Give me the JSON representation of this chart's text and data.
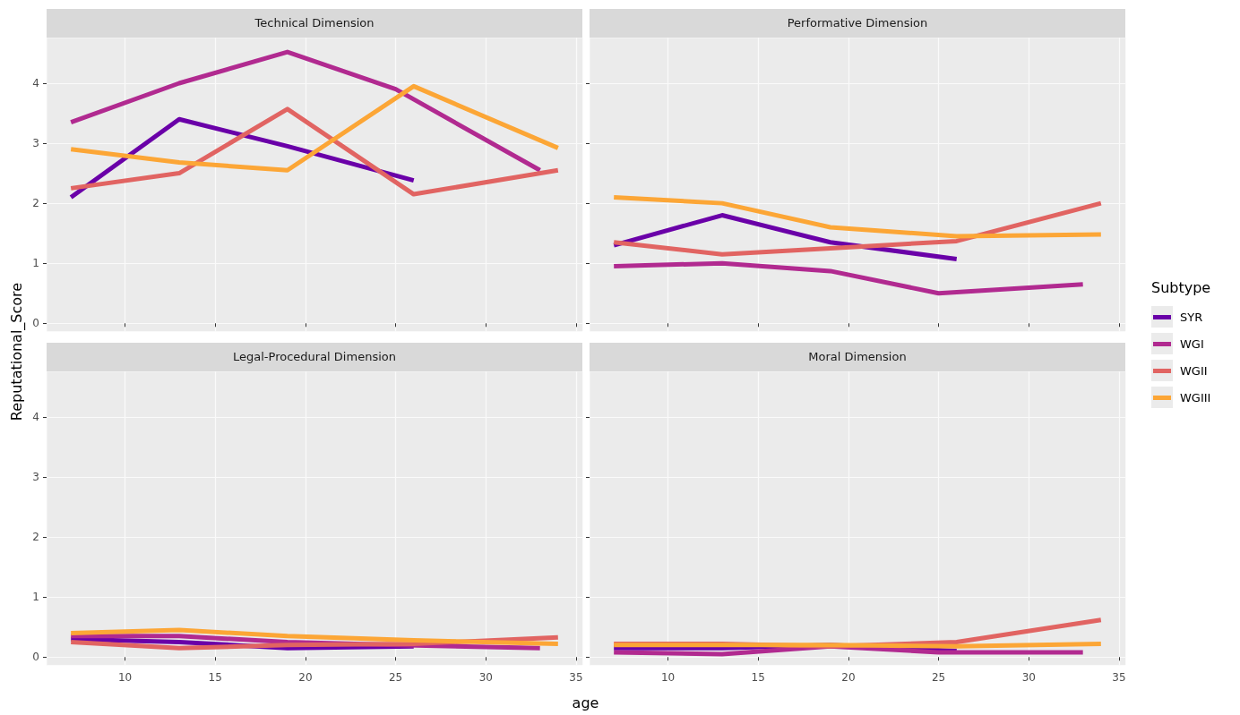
{
  "chart_data": [
    {
      "type": "line",
      "title": "Technical Dimension",
      "ylabel": "Reputational_Score",
      "legend_title": "Subtype",
      "legend": "right",
      "grid": true,
      "marker": "none",
      "line_style": "solid",
      "tick_labels": "y",
      "xlim": [
        5.65,
        35.35
      ],
      "xticks": [
        10,
        15,
        20,
        25,
        30,
        35
      ],
      "ylim": [
        -0.13,
        4.76
      ],
      "yticks": [
        0,
        1,
        2,
        3,
        4
      ],
      "series": [
        {
          "name": "SYR",
          "color": "#6a00a8",
          "x": [
            7,
            13,
            19,
            26
          ],
          "values": [
            2.1,
            3.4,
            2.95,
            2.38
          ]
        },
        {
          "name": "WGI",
          "color": "#b12a90",
          "x": [
            7,
            13,
            19,
            25,
            33
          ],
          "values": [
            3.35,
            4.0,
            4.52,
            3.9,
            2.55
          ]
        },
        {
          "name": "WGII",
          "color": "#e16462",
          "x": [
            7,
            13,
            19,
            26,
            34
          ],
          "values": [
            2.25,
            2.5,
            3.57,
            2.15,
            2.55
          ]
        },
        {
          "name": "WGIII",
          "color": "#fca636",
          "x": [
            7,
            13,
            19,
            26,
            34
          ],
          "values": [
            2.9,
            2.68,
            2.55,
            3.95,
            2.92
          ]
        }
      ]
    },
    {
      "type": "line",
      "title": "Performative Dimension",
      "grid": true,
      "marker": "none",
      "line_style": "solid",
      "tick_labels": false,
      "xlim": [
        5.65,
        35.35
      ],
      "xticks": [
        10,
        15,
        20,
        25,
        30,
        35
      ],
      "ylim": [
        -0.13,
        4.76
      ],
      "yticks": [
        0,
        1,
        2,
        3,
        4
      ],
      "series": [
        {
          "color": "#6a00a8",
          "x": [
            7,
            13,
            19,
            26
          ],
          "values": [
            1.3,
            1.8,
            1.35,
            1.07
          ]
        },
        {
          "color": "#b12a90",
          "x": [
            7,
            13,
            19,
            25,
            33
          ],
          "values": [
            0.95,
            1.0,
            0.87,
            0.5,
            0.65
          ]
        },
        {
          "color": "#e16462",
          "x": [
            7,
            13,
            19,
            26,
            34
          ],
          "values": [
            1.35,
            1.15,
            1.25,
            1.37,
            2.0
          ]
        },
        {
          "color": "#fca636",
          "x": [
            7,
            13,
            19,
            26,
            34
          ],
          "values": [
            2.1,
            2.0,
            1.6,
            1.45,
            1.48
          ]
        }
      ]
    },
    {
      "type": "line",
      "title": "Legal-Procedural Dimension",
      "xlabel": "age",
      "grid": true,
      "marker": "none",
      "line_style": "solid",
      "xlim": [
        5.65,
        35.35
      ],
      "xticks": [
        10,
        15,
        20,
        25,
        30,
        35
      ],
      "ylim": [
        -0.13,
        4.76
      ],
      "yticks": [
        0,
        1,
        2,
        3,
        4
      ],
      "series": [
        {
          "color": "#6a00a8",
          "x": [
            7,
            13,
            19,
            26
          ],
          "values": [
            0.3,
            0.25,
            0.15,
            0.18
          ]
        },
        {
          "color": "#b12a90",
          "x": [
            7,
            13,
            19,
            25,
            33
          ],
          "values": [
            0.35,
            0.35,
            0.25,
            0.2,
            0.15
          ]
        },
        {
          "color": "#e16462",
          "x": [
            7,
            13,
            19,
            26,
            34
          ],
          "values": [
            0.25,
            0.15,
            0.2,
            0.22,
            0.33
          ]
        },
        {
          "color": "#fca636",
          "x": [
            7,
            13,
            19,
            26,
            34
          ],
          "values": [
            0.4,
            0.45,
            0.35,
            0.28,
            0.22
          ]
        }
      ]
    },
    {
      "type": "line",
      "title": "Moral Dimension",
      "grid": true,
      "marker": "none",
      "line_style": "solid",
      "tick_labels": "x",
      "xlim": [
        5.65,
        35.35
      ],
      "xticks": [
        10,
        15,
        20,
        25,
        30,
        35
      ],
      "ylim": [
        -0.13,
        4.76
      ],
      "yticks": [
        0,
        1,
        2,
        3,
        4
      ],
      "series": [
        {
          "color": "#6a00a8",
          "x": [
            7,
            13,
            19,
            26
          ],
          "values": [
            0.15,
            0.15,
            0.2,
            0.1
          ]
        },
        {
          "color": "#b12a90",
          "x": [
            7,
            13,
            19,
            25,
            33
          ],
          "values": [
            0.08,
            0.05,
            0.18,
            0.08,
            0.08
          ]
        },
        {
          "color": "#e16462",
          "x": [
            7,
            13,
            19,
            26,
            34
          ],
          "values": [
            0.22,
            0.22,
            0.18,
            0.25,
            0.62
          ]
        },
        {
          "color": "#fca636",
          "x": [
            7,
            13,
            19,
            26,
            34
          ],
          "values": [
            0.2,
            0.2,
            0.2,
            0.18,
            0.22
          ]
        }
      ]
    }
  ]
}
